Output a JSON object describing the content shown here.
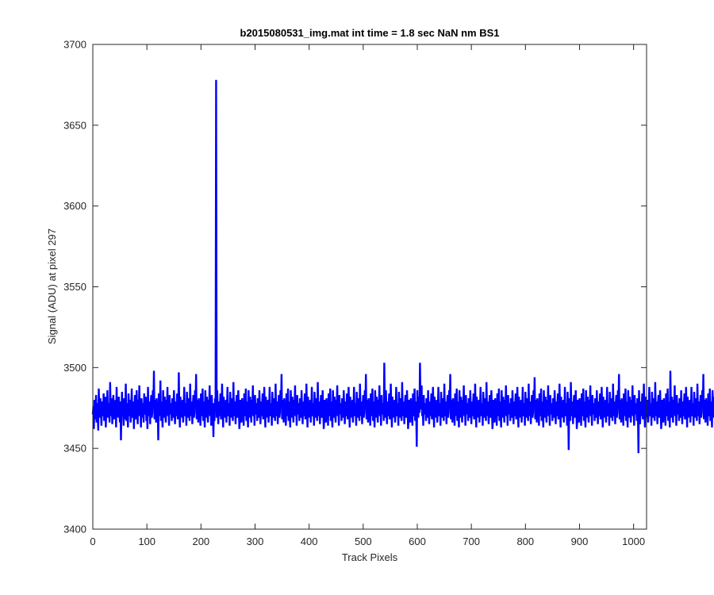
{
  "chart_data": {
    "type": "line",
    "title": "b2015080531_img.mat int time = 1.8 sec  NaN nm BS1",
    "xlabel": "Track Pixels",
    "ylabel": "Signal (ADU) at pixel 297",
    "xlim": [
      0,
      1024
    ],
    "ylim": [
      3400,
      3700
    ],
    "xticks": [
      0,
      100,
      200,
      300,
      400,
      500,
      600,
      700,
      800,
      900,
      1000
    ],
    "yticks": [
      3400,
      3450,
      3500,
      3550,
      3600,
      3650,
      3700
    ],
    "grid": false,
    "line_color": "#0000ff",
    "axes_color": "#262626",
    "series": [
      {
        "x_start": 0,
        "x_step": 1,
        "values": [
          3471,
          3476,
          3462,
          3480,
          3468,
          3474,
          3483,
          3466,
          3478,
          3472,
          3461,
          3487,
          3475,
          3469,
          3481,
          3473,
          3464,
          3479,
          3477,
          3470,
          3484,
          3467,
          3476,
          3482,
          3463,
          3475,
          3471,
          3486,
          3469,
          3478,
          3473,
          3466,
          3491,
          3474,
          3470,
          3481,
          3465,
          3477,
          3483,
          3468,
          3475,
          3472,
          3480,
          3463,
          3488,
          3471,
          3476,
          3469,
          3482,
          3474,
          3466,
          3479,
          3455,
          3473,
          3485,
          3470,
          3477,
          3464,
          3481,
          3468,
          3474,
          3490,
          3467,
          3478,
          3472,
          3463,
          3484,
          3476,
          3470,
          3480,
          3466,
          3475,
          3487,
          3469,
          3473,
          3479,
          3462,
          3477,
          3483,
          3471,
          3468,
          3486,
          3474,
          3465,
          3480,
          3472,
          3489,
          3470,
          3476,
          3463,
          3481,
          3475,
          3469,
          3478,
          3466,
          3484,
          3473,
          3471,
          3482,
          3467,
          3476,
          3462,
          3488,
          3474,
          3470,
          3479,
          3465,
          3477,
          3483,
          3469,
          3472,
          3486,
          3475,
          3498,
          3468,
          3480,
          3473,
          3466,
          3481,
          3471,
          3477,
          3455,
          3484,
          3470,
          3475,
          3492,
          3467,
          3479,
          3473,
          3463,
          3486,
          3476,
          3469,
          3482,
          3472,
          3466,
          3480,
          3474,
          3488,
          3470,
          3477,
          3464,
          3483,
          3471,
          3475,
          3478,
          3467,
          3481,
          3473,
          3469,
          3486,
          3474,
          3465,
          3479,
          3470,
          3476,
          3484,
          3468,
          3472,
          3497,
          3475,
          3463,
          3482,
          3471,
          3477,
          3469,
          3480,
          3466,
          3474,
          3488,
          3473,
          3470,
          3478,
          3464,
          3485,
          3476,
          3469,
          3481,
          3472,
          3467,
          3490,
          3474,
          3470,
          3479,
          3465,
          3477,
          3483,
          3469,
          3472,
          3486,
          3475,
          3496,
          3468,
          3480,
          3473,
          3466,
          3481,
          3471,
          3477,
          3464,
          3484,
          3470,
          3475,
          3487,
          3467,
          3479,
          3473,
          3463,
          3486,
          3476,
          3469,
          3482,
          3472,
          3466,
          3480,
          3474,
          3489,
          3470,
          3477,
          3464,
          3483,
          3471,
          3475,
          3457,
          3478,
          3467,
          3481,
          3473,
          3678,
          3469,
          3486,
          3474,
          3465,
          3479,
          3470,
          3476,
          3484,
          3468,
          3472,
          3490,
          3475,
          3463,
          3482,
          3471,
          3477,
          3469,
          3480,
          3466,
          3474,
          3488,
          3473,
          3470,
          3478,
          3464,
          3485,
          3476,
          3469,
          3481,
          3472,
          3467,
          3491,
          3474,
          3470,
          3479,
          3465,
          3477,
          3483,
          3469,
          3472,
          3486,
          3475,
          3462,
          3468,
          3480,
          3473,
          3466,
          3481,
          3471,
          3477,
          3464,
          3484,
          3470,
          3475,
          3487,
          3467,
          3479,
          3473,
          3463,
          3486,
          3476,
          3469,
          3482,
          3472,
          3466,
          3480,
          3474,
          3489,
          3470,
          3477,
          3464,
          3483,
          3471,
          3475,
          3478,
          3467,
          3481,
          3473,
          3469,
          3486,
          3474,
          3465,
          3479,
          3470,
          3476,
          3484,
          3468,
          3472,
          3488,
          3475,
          3463,
          3482,
          3471,
          3477,
          3469,
          3480,
          3466,
          3474,
          3488,
          3473,
          3470,
          3478,
          3464,
          3485,
          3476,
          3469,
          3481,
          3472,
          3467,
          3490,
          3474,
          3470,
          3479,
          3465,
          3477,
          3483,
          3469,
          3472,
          3486,
          3475,
          3496,
          3468,
          3480,
          3473,
          3466,
          3481,
          3471,
          3477,
          3464,
          3484,
          3470,
          3475,
          3487,
          3467,
          3479,
          3473,
          3463,
          3486,
          3476,
          3469,
          3482,
          3472,
          3466,
          3480,
          3474,
          3489,
          3470,
          3477,
          3464,
          3483,
          3471,
          3475,
          3478,
          3467,
          3481,
          3473,
          3469,
          3486,
          3474,
          3465,
          3479,
          3470,
          3476,
          3484,
          3468,
          3472,
          3490,
          3475,
          3463,
          3482,
          3471,
          3477,
          3469,
          3480,
          3466,
          3474,
          3488,
          3473,
          3470,
          3478,
          3464,
          3485,
          3476,
          3469,
          3481,
          3472,
          3467,
          3491,
          3474,
          3470,
          3479,
          3465,
          3477,
          3483,
          3469,
          3472,
          3486,
          3475,
          3462,
          3468,
          3480,
          3473,
          3466,
          3481,
          3471,
          3477,
          3464,
          3484,
          3470,
          3475,
          3487,
          3467,
          3479,
          3473,
          3463,
          3486,
          3476,
          3469,
          3482,
          3472,
          3466,
          3480,
          3474,
          3489,
          3470,
          3477,
          3464,
          3483,
          3471,
          3475,
          3478,
          3467,
          3481,
          3473,
          3469,
          3486,
          3474,
          3465,
          3479,
          3470,
          3476,
          3484,
          3468,
          3472,
          3488,
          3475,
          3463,
          3482,
          3471,
          3477,
          3469,
          3480,
          3466,
          3474,
          3488,
          3473,
          3470,
          3478,
          3464,
          3485,
          3476,
          3469,
          3481,
          3472,
          3467,
          3490,
          3474,
          3470,
          3479,
          3465,
          3477,
          3483,
          3469,
          3472,
          3486,
          3475,
          3496,
          3468,
          3480,
          3473,
          3466,
          3481,
          3471,
          3477,
          3464,
          3484,
          3470,
          3475,
          3487,
          3467,
          3479,
          3473,
          3463,
          3486,
          3476,
          3469,
          3482,
          3472,
          3466,
          3480,
          3474,
          3489,
          3470,
          3477,
          3464,
          3483,
          3471,
          3475,
          3478,
          3467,
          3503,
          3473,
          3469,
          3486,
          3474,
          3465,
          3479,
          3470,
          3476,
          3484,
          3468,
          3472,
          3490,
          3475,
          3463,
          3482,
          3471,
          3477,
          3469,
          3480,
          3466,
          3474,
          3488,
          3473,
          3470,
          3478,
          3464,
          3485,
          3476,
          3469,
          3481,
          3472,
          3467,
          3491,
          3474,
          3470,
          3479,
          3465,
          3477,
          3483,
          3469,
          3472,
          3486,
          3475,
          3462,
          3468,
          3480,
          3473,
          3466,
          3481,
          3471,
          3477,
          3464,
          3484,
          3470,
          3475,
          3487,
          3467,
          3479,
          3473,
          3451,
          3486,
          3476,
          3469,
          3482,
          3472,
          3503,
          3480,
          3474,
          3489,
          3470,
          3477,
          3464,
          3483,
          3471,
          3475,
          3478,
          3467,
          3481,
          3473,
          3469,
          3486,
          3474,
          3465,
          3479,
          3470,
          3476,
          3484,
          3468,
          3472,
          3488,
          3475,
          3463,
          3482,
          3471,
          3477,
          3469,
          3480,
          3466,
          3474,
          3488,
          3473,
          3470,
          3478,
          3464,
          3485,
          3476,
          3469,
          3481,
          3472,
          3467,
          3490,
          3474,
          3470,
          3479,
          3465,
          3477,
          3483,
          3469,
          3472,
          3486,
          3475,
          3496,
          3468,
          3480,
          3473,
          3466,
          3481,
          3471,
          3477,
          3464,
          3484,
          3470,
          3475,
          3487,
          3467,
          3479,
          3473,
          3463,
          3486,
          3476,
          3469,
          3482,
          3472,
          3466,
          3480,
          3474,
          3489,
          3470,
          3477,
          3464,
          3483,
          3471,
          3475,
          3478,
          3467,
          3481,
          3473,
          3469,
          3486,
          3474,
          3465,
          3479,
          3470,
          3476,
          3484,
          3468,
          3472,
          3490,
          3475,
          3463,
          3482,
          3471,
          3477,
          3469,
          3480,
          3466,
          3474,
          3488,
          3473,
          3470,
          3478,
          3464,
          3485,
          3476,
          3469,
          3481,
          3472,
          3467,
          3491,
          3474,
          3470,
          3479,
          3465,
          3477,
          3483,
          3469,
          3472,
          3486,
          3475,
          3462,
          3468,
          3480,
          3473,
          3466,
          3481,
          3471,
          3477,
          3464,
          3484,
          3470,
          3475,
          3487,
          3467,
          3479,
          3473,
          3463,
          3486,
          3476,
          3469,
          3482,
          3472,
          3466,
          3480,
          3474,
          3489,
          3470,
          3477,
          3464,
          3483,
          3471,
          3475,
          3478,
          3467,
          3481,
          3473,
          3469,
          3486,
          3474,
          3465,
          3479,
          3470,
          3476,
          3484,
          3468,
          3472,
          3488,
          3475,
          3463,
          3482,
          3471,
          3477,
          3469,
          3480,
          3466,
          3474,
          3488,
          3473,
          3470,
          3478,
          3464,
          3485,
          3476,
          3469,
          3481,
          3472,
          3467,
          3490,
          3474,
          3470,
          3479,
          3465,
          3477,
          3483,
          3469,
          3472,
          3486,
          3475,
          3494,
          3468,
          3480,
          3473,
          3466,
          3481,
          3471,
          3477,
          3464,
          3484,
          3470,
          3475,
          3487,
          3467,
          3479,
          3473,
          3463,
          3486,
          3476,
          3469,
          3482,
          3472,
          3466,
          3480,
          3474,
          3489,
          3470,
          3477,
          3464,
          3483,
          3471,
          3475,
          3478,
          3467,
          3481,
          3473,
          3469,
          3486,
          3474,
          3465,
          3479,
          3470,
          3476,
          3484,
          3468,
          3472,
          3490,
          3475,
          3463,
          3482,
          3471,
          3477,
          3469,
          3480,
          3466,
          3474,
          3488,
          3473,
          3470,
          3478,
          3464,
          3485,
          3476,
          3449,
          3481,
          3472,
          3467,
          3491,
          3474,
          3470,
          3479,
          3465,
          3477,
          3483,
          3469,
          3472,
          3486,
          3475,
          3462,
          3468,
          3480,
          3473,
          3466,
          3481,
          3471,
          3477,
          3464,
          3484,
          3470,
          3475,
          3487,
          3467,
          3479,
          3473,
          3463,
          3486,
          3476,
          3469,
          3482,
          3472,
          3466,
          3480,
          3474,
          3489,
          3470,
          3477,
          3464,
          3483,
          3471,
          3475,
          3478,
          3467,
          3481,
          3473,
          3469,
          3486,
          3474,
          3465,
          3479,
          3470,
          3476,
          3484,
          3468,
          3472,
          3488,
          3475,
          3463,
          3482,
          3471,
          3477,
          3469,
          3480,
          3466,
          3474,
          3488,
          3473,
          3470,
          3478,
          3464,
          3485,
          3476,
          3469,
          3481,
          3472,
          3467,
          3490,
          3474,
          3470,
          3479,
          3465,
          3477,
          3483,
          3469,
          3472,
          3486,
          3475,
          3496,
          3468,
          3480,
          3473,
          3466,
          3481,
          3471,
          3477,
          3464,
          3484,
          3470,
          3475,
          3487,
          3467,
          3479,
          3473,
          3463,
          3486,
          3476,
          3469,
          3482,
          3472,
          3466,
          3480,
          3474,
          3489,
          3470,
          3477,
          3464,
          3483,
          3471,
          3475,
          3478,
          3467,
          3481,
          3473,
          3447,
          3486,
          3474,
          3465,
          3479,
          3470,
          3476,
          3484,
          3468,
          3472,
          3490,
          3475,
          3463,
          3482,
          3471,
          3477,
          3469,
          3480,
          3466,
          3474,
          3488,
          3473,
          3470,
          3478,
          3464,
          3485,
          3476,
          3469,
          3481,
          3472,
          3467,
          3491,
          3474,
          3470,
          3479,
          3465,
          3477,
          3483,
          3469,
          3472,
          3486,
          3475,
          3462,
          3468,
          3480,
          3473,
          3466,
          3481,
          3471,
          3477,
          3464,
          3484,
          3470,
          3475,
          3487,
          3467,
          3479,
          3473,
          3463,
          3498,
          3476,
          3469,
          3482,
          3472,
          3466,
          3480,
          3474,
          3489,
          3470,
          3477,
          3464,
          3483,
          3471,
          3475,
          3478,
          3467,
          3481,
          3473,
          3469,
          3486,
          3474,
          3465,
          3479,
          3470,
          3476,
          3484,
          3468,
          3472,
          3488,
          3475,
          3463,
          3482,
          3471,
          3477,
          3469,
          3480,
          3466,
          3474,
          3488,
          3473,
          3470,
          3478,
          3464,
          3485,
          3476,
          3469,
          3481,
          3472,
          3467,
          3490,
          3474,
          3470,
          3479,
          3465,
          3477,
          3483,
          3469,
          3472,
          3486,
          3475,
          3496,
          3468,
          3480,
          3473,
          3466,
          3481,
          3471,
          3477,
          3464,
          3484,
          3470,
          3475,
          3487,
          3467,
          3479,
          3473,
          3463,
          3486,
          3476,
          3469,
          3482,
          3472,
          3466,
          3480,
          3474,
          3489,
          3470,
          3477,
          3464,
          3483,
          3471,
          3475,
          3478,
          3467,
          3481,
          3473,
          3469,
          3486,
          3474,
          3465,
          3479,
          3470,
          3476,
          3484,
          3468,
          3472,
          3490,
          3475,
          3463,
          3482,
          3471,
          3477,
          3469,
          3480,
          3466,
          3474,
          3488,
          3473,
          3470
        ]
      }
    ]
  }
}
